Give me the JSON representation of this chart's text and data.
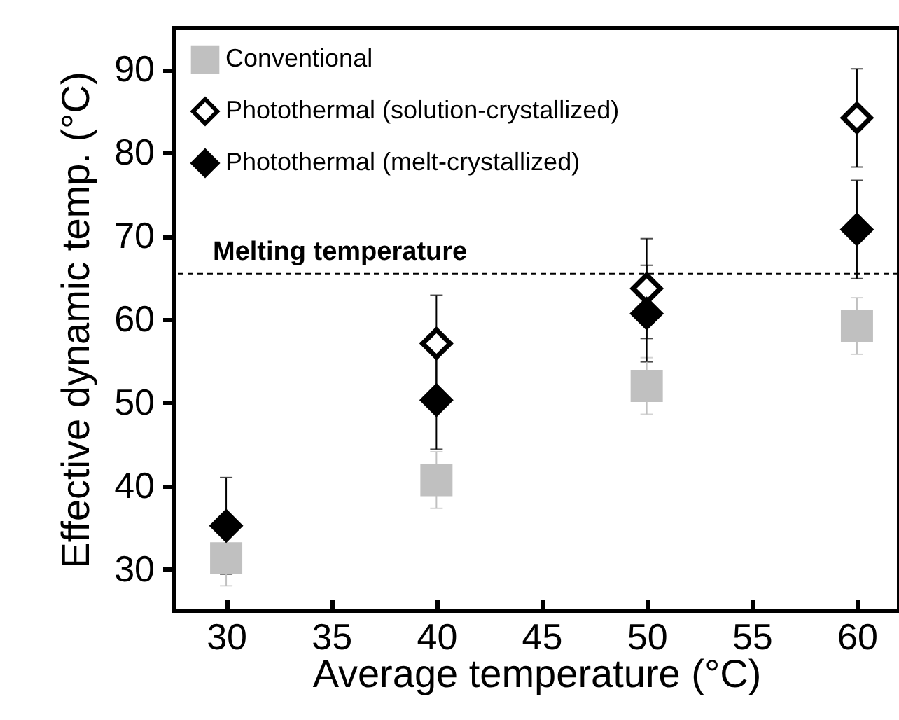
{
  "chart_data": {
    "type": "scatter",
    "xlabel": "Average temperature (°C)",
    "ylabel": "Effective dynamic temp. (°C)",
    "x": [
      30,
      40,
      50,
      60
    ],
    "series": [
      {
        "name": "Conventional",
        "color": "#c0c0c0",
        "marker": "square",
        "values": [
          31.3,
          40.7,
          52.0,
          59.2
        ],
        "errors": [
          3.3,
          3.4,
          3.4,
          3.4
        ]
      },
      {
        "name": "Photothermal (solution-crystallized)",
        "color": "#ffffff",
        "marker": "diamond",
        "values": [
          null,
          57.1,
          63.7,
          84.2
        ],
        "errors": [
          null,
          5.8,
          6.0,
          5.9
        ]
      },
      {
        "name": "Photothermal (melt-crystallized)",
        "color": "#000000",
        "marker": "diamond",
        "values": [
          35.2,
          50.3,
          60.7,
          70.8
        ],
        "errors": [
          5.8,
          5.9,
          5.8,
          5.9
        ]
      }
    ],
    "xlim": [
      27.5,
      62
    ],
    "ylim": [
      25,
      95
    ],
    "xticks": [
      30,
      35,
      40,
      45,
      50,
      55,
      60
    ],
    "yticks": [
      30,
      40,
      50,
      60,
      70,
      80,
      90
    ],
    "ref_lines": [
      {
        "axis": "y",
        "value": 65.5,
        "label": "Melting temperature",
        "line_style": "dashed",
        "color": "#000000"
      }
    ],
    "grid": false,
    "legend": "top left"
  }
}
